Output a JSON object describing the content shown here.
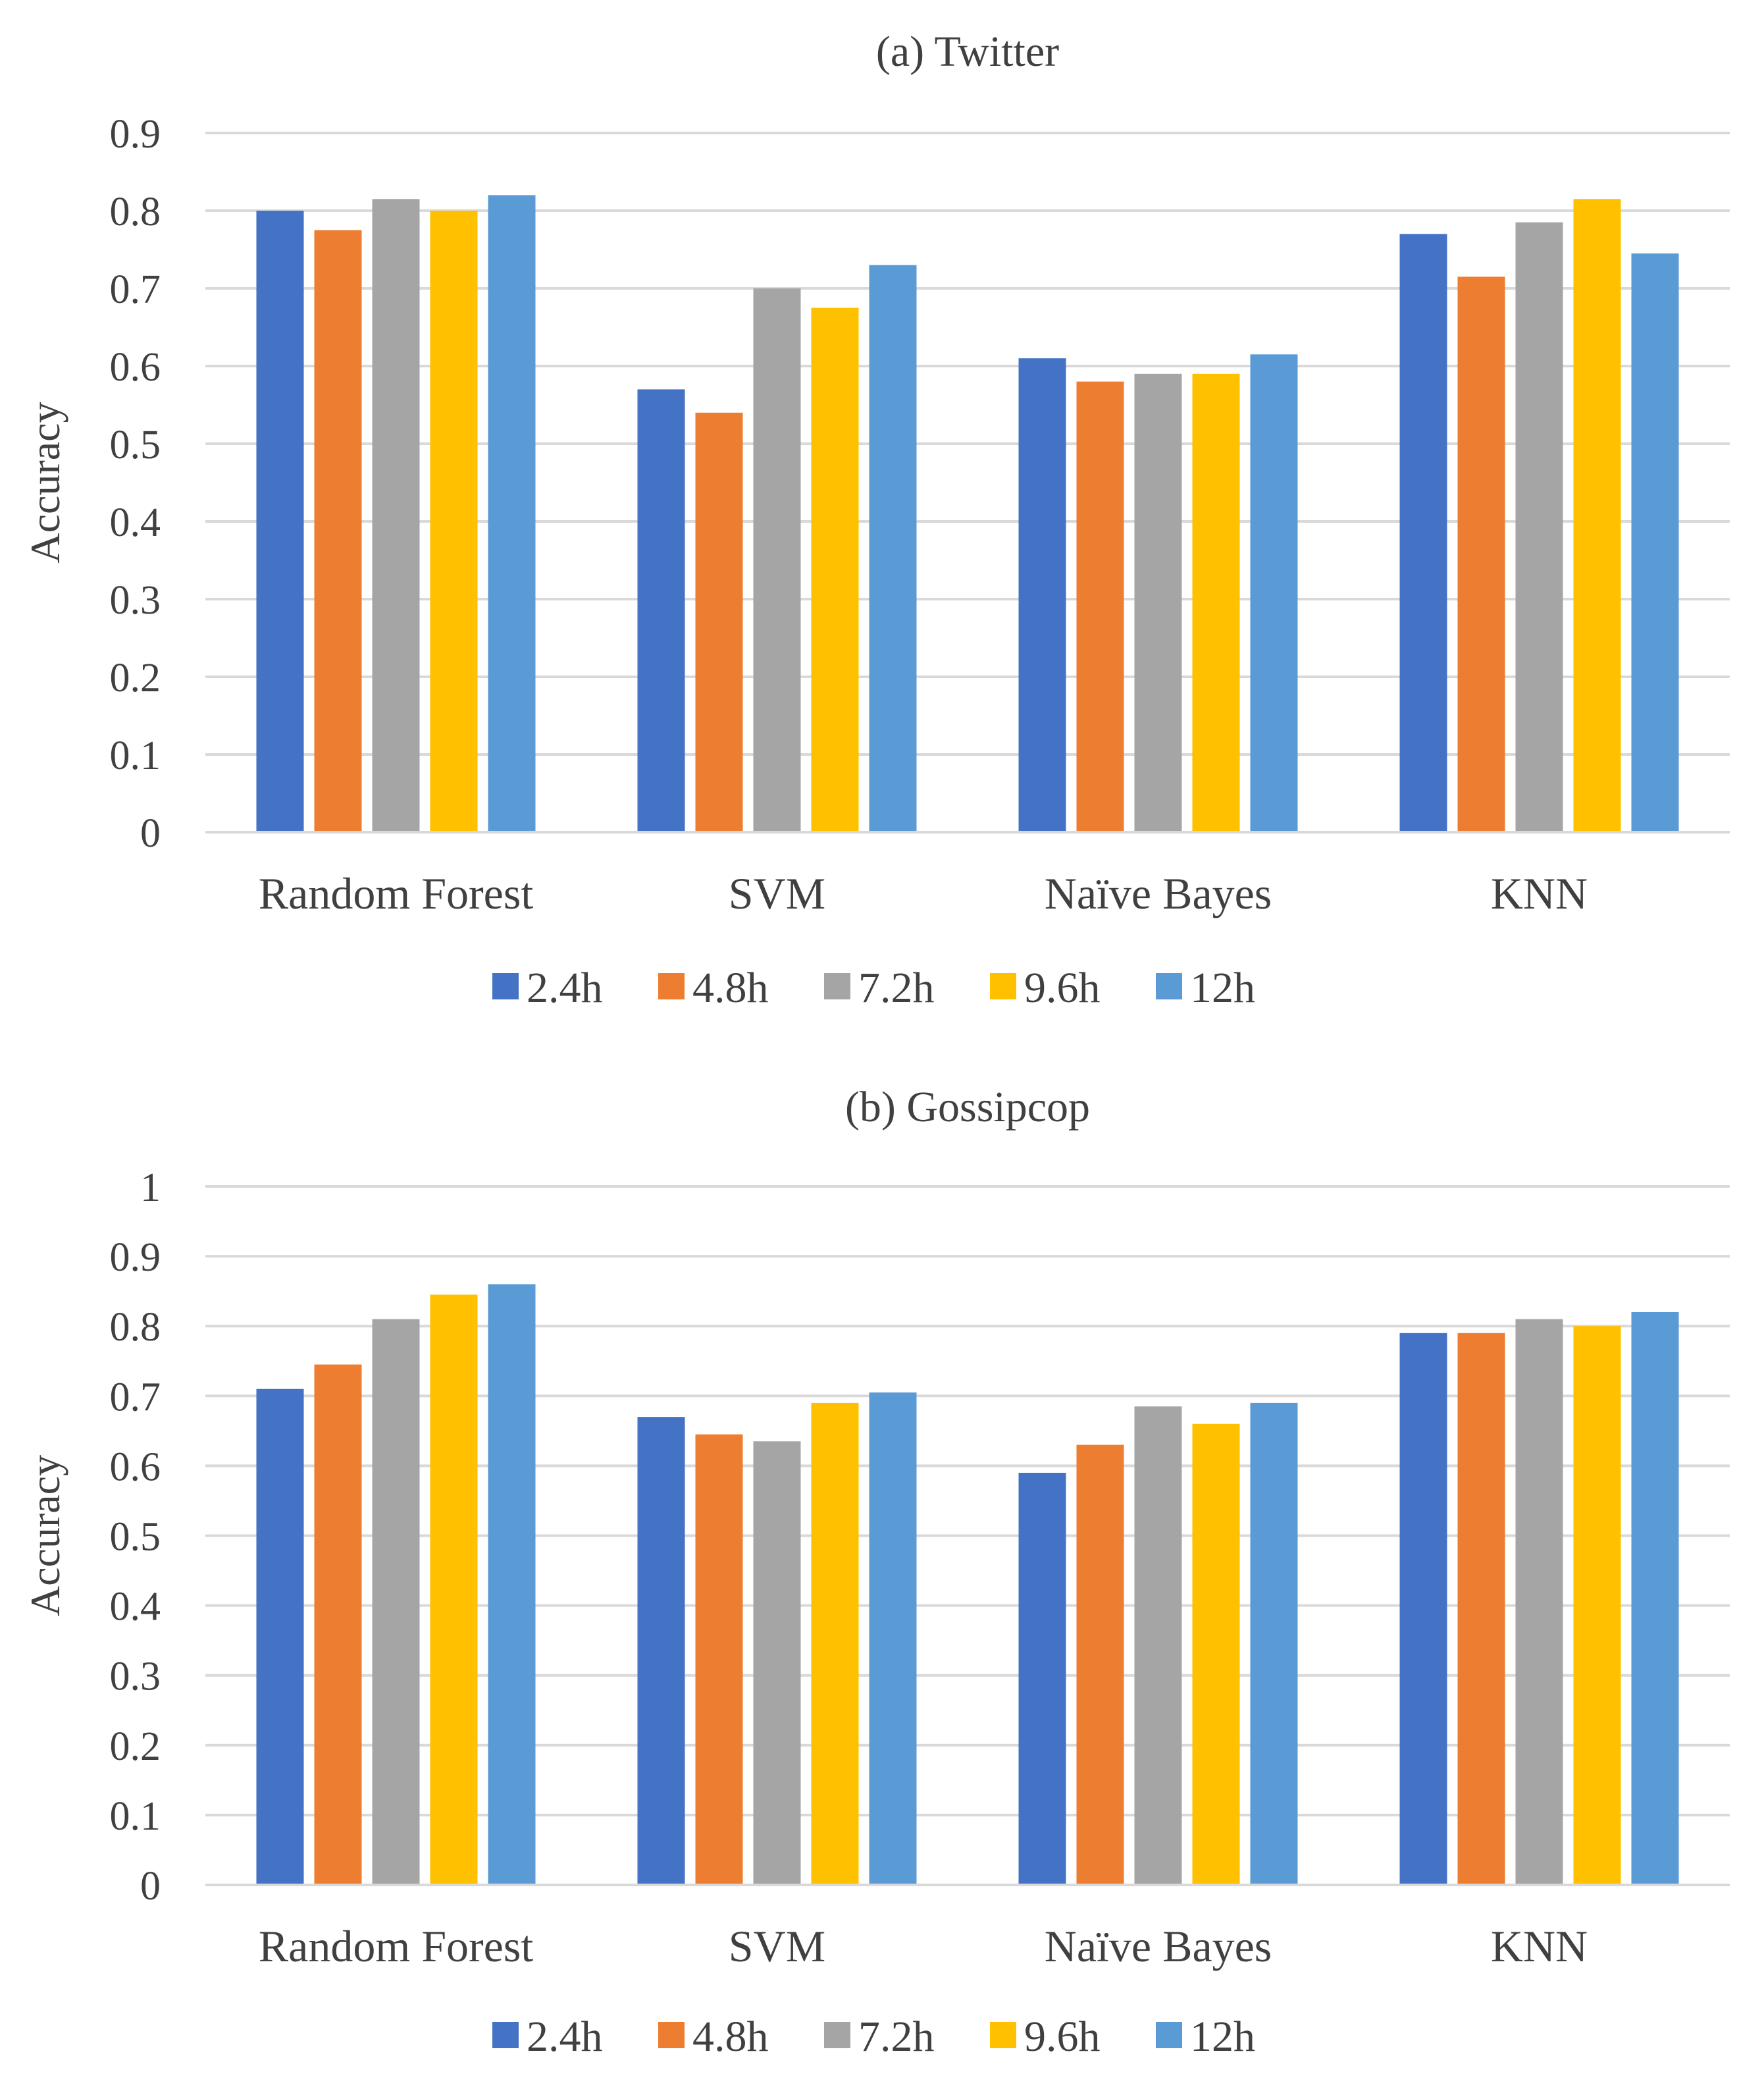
{
  "colors": {
    "series": [
      "#4472C4",
      "#ED7D31",
      "#A5A5A5",
      "#FFC000",
      "#5B9BD5"
    ],
    "grid": "#D9D9D9",
    "text": "#404040"
  },
  "chart_data": [
    {
      "type": "bar",
      "title": "(a) Twitter",
      "xlabel": "",
      "ylabel": "Accuracy",
      "ylim": [
        0,
        0.9
      ],
      "yticks": [
        "0",
        "0.1",
        "0.2",
        "0.3",
        "0.4",
        "0.5",
        "0.6",
        "0.7",
        "0.8",
        "0.9"
      ],
      "grid": true,
      "legend": "bottom",
      "categories": [
        "Random Forest",
        "SVM",
        "Naïve Bayes",
        "KNN"
      ],
      "series": [
        {
          "name": "2.4h",
          "values": [
            0.8,
            0.57,
            0.61,
            0.77
          ]
        },
        {
          "name": "4.8h",
          "values": [
            0.775,
            0.54,
            0.58,
            0.715
          ]
        },
        {
          "name": "7.2h",
          "values": [
            0.815,
            0.7,
            0.59,
            0.785
          ]
        },
        {
          "name": "9.6h",
          "values": [
            0.8,
            0.675,
            0.59,
            0.815
          ]
        },
        {
          "name": "12h",
          "values": [
            0.82,
            0.73,
            0.615,
            0.745
          ]
        }
      ]
    },
    {
      "type": "bar",
      "title": "(b) Gossipcop",
      "xlabel": "",
      "ylabel": "Accuracy",
      "ylim": [
        0,
        1
      ],
      "yticks": [
        "0",
        "0.1",
        "0.2",
        "0.3",
        "0.4",
        "0.5",
        "0.6",
        "0.7",
        "0.8",
        "0.9",
        "1"
      ],
      "grid": true,
      "legend": "bottom",
      "categories": [
        "Random Forest",
        "SVM",
        "Naïve Bayes",
        "KNN"
      ],
      "series": [
        {
          "name": "2.4h",
          "values": [
            0.71,
            0.67,
            0.59,
            0.79
          ]
        },
        {
          "name": "4.8h",
          "values": [
            0.745,
            0.645,
            0.63,
            0.79
          ]
        },
        {
          "name": "7.2h",
          "values": [
            0.81,
            0.635,
            0.685,
            0.81
          ]
        },
        {
          "name": "9.6h",
          "values": [
            0.845,
            0.69,
            0.66,
            0.8
          ]
        },
        {
          "name": "12h",
          "values": [
            0.86,
            0.705,
            0.69,
            0.82
          ]
        }
      ]
    }
  ]
}
